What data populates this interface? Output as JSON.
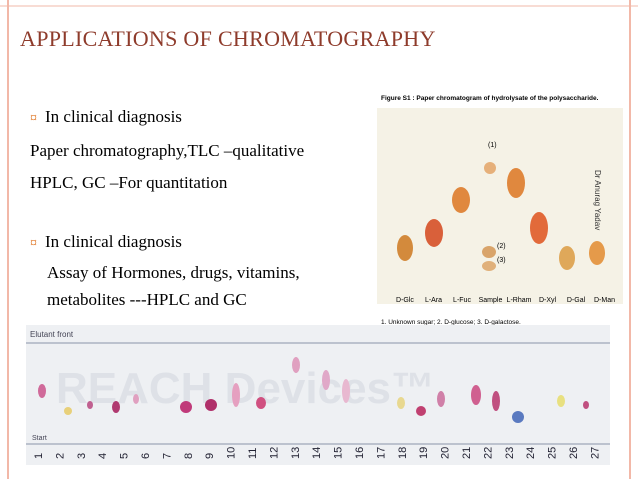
{
  "header": {
    "title": "APPLICATIONS OF CHROMATOGRAPHY"
  },
  "body": {
    "items": [
      {
        "bullet": true,
        "text": "In clinical diagnosis"
      },
      {
        "bullet": false,
        "text": "Paper chromatography,TLC –qualitative"
      },
      {
        "bullet": false,
        "text": "HPLC, GC –For quantitation"
      },
      {
        "bullet": true,
        "text": "In clinical diagnosis"
      },
      {
        "bullet": false,
        "text": "Assay of Hormones, drugs, vitamins,"
      },
      {
        "bullet": false,
        "text": "metabolites ---HPLC and GC"
      }
    ]
  },
  "figure1": {
    "caption": "Figure S1 : Paper chromatogram of hydrolysate of the polysaccharide.",
    "spot_labels": [
      "(1)",
      "(2)",
      "(3)"
    ],
    "lanes": [
      "D-Glc",
      "L-Ara",
      "L-Fuc",
      "Sample",
      "L-Rham",
      "D-Xyl",
      "D-Gal",
      "D-Man"
    ],
    "footnote": "1. Unknown sugar; 2. D-glucose; 3. D-galactose.",
    "credit": "Dr Anurag Yadav"
  },
  "figure2": {
    "front_label": "Elutant front",
    "start_label": "Start",
    "watermark": "REACH Devices™",
    "lanes": [
      "1",
      "2",
      "3",
      "4",
      "5",
      "6",
      "7",
      "8",
      "9",
      "10",
      "11",
      "12",
      "13",
      "14",
      "15",
      "16",
      "17",
      "18",
      "19",
      "20",
      "21",
      "22",
      "23",
      "24",
      "25",
      "26",
      "27"
    ]
  }
}
